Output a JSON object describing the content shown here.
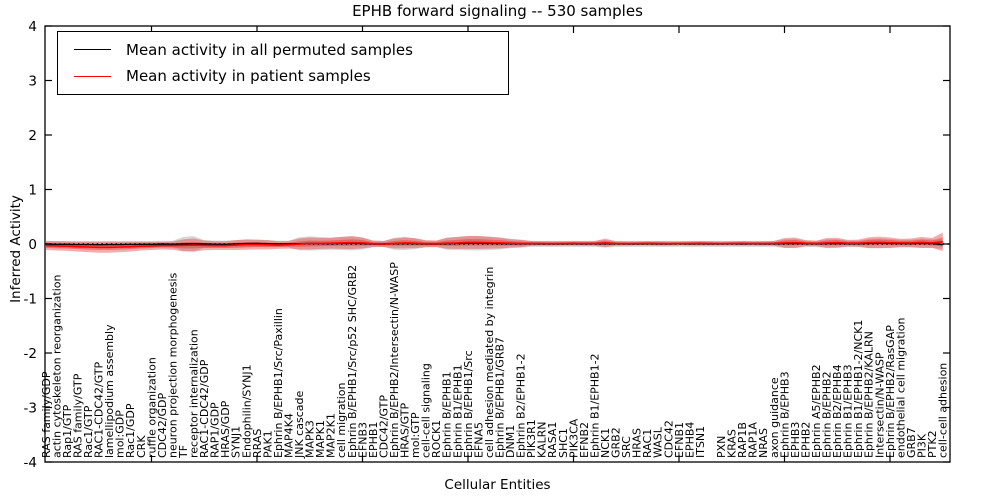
{
  "chart_data": {
    "type": "line",
    "title": "EPHB forward signaling -- 530 samples",
    "xlabel": "Cellular Entities",
    "ylabel": "Inferred Activity",
    "ylim": [
      -4,
      4
    ],
    "yticks": [
      -4,
      -3,
      -2,
      -1,
      0,
      1,
      2,
      3,
      4
    ],
    "xtick_interval": 10,
    "grid": false,
    "zero_line_style": "dotted",
    "legend_position": "upper left",
    "entities": [
      "RAS family/GDP",
      "actin cytoskeleton reorganization",
      "Rap1/GTP",
      "RAS family/GTP",
      "Rac1/GTP",
      "RAC1-CDC42/GTP",
      "lamellipodium assembly",
      "mol:GDP",
      "Rac1/GDP",
      "CRK",
      "ruffle organization",
      "CDC42/GDP",
      "neuron projection morphogenesis",
      "TF",
      "receptor internalization",
      "RAC1-CDC42/GDP",
      "RAP1/GDP",
      "HRAS/GDP",
      "SYNJ1",
      "Endophilin/SYNJ1",
      "RRAS",
      "PAK1",
      "Ephrin B/EPHB1/Src/Paxillin",
      "MAP4K4",
      "JNK cascade",
      "MAPK3",
      "MAPK1",
      "MAP2K1",
      "cell migration",
      "Ephrin B/EPHB1/Src/p52 SHC/GRB2",
      "EFNB3",
      "EPHB1",
      "CDC42/GTP",
      "Ephrin B/EPHB2/Intersectin/N-WASP",
      "HRAS/GTP",
      "mol:GTP",
      "cell-cell signaling",
      "ROCK1",
      "Ephrin B/EPHB1",
      "Ephrin B1/EPHB1",
      "Ephrin B/EPHB1/Src",
      "EFNA5",
      "cell adhesion mediated by integrin",
      "Ephrin B/EPHB1/GRB7",
      "DNM1",
      "Ephrin B2/EPHB1-2",
      "PIK3R1",
      "KALRN",
      "RASA1",
      "SHC1",
      "PIK3CA",
      "EFNB2",
      "Ephrin B1/EPHB1-2",
      "NCK1",
      "GRB2",
      "SRC",
      "HRAS",
      "RAC1",
      "WASL",
      "CDC42",
      "EFNB1",
      "EPHB4",
      "ITSN1",
      "",
      "PXN",
      "KRAS",
      "RAP1B",
      "RAP1A",
      "NRAS",
      "axon guidance",
      "Ephrin B/EPHB3",
      "EPHB3",
      "EPHB2",
      "Ephrin A5/EPHB2",
      "Ephrin B/EPHB2",
      "Ephrin B2/EPHB4",
      "Ephrin B1/EPHB3",
      "Ephrin B1/EPHB1-2/NCK1",
      "Ephrin B/EPHB2/KALRN",
      "Intersectin/N-WASP",
      "Ephrin B/EPHB2/RasGAP",
      "endothelial cell migration",
      "GRB7",
      "PI3K",
      "PTK2",
      "cell-cell adhesion"
    ],
    "series": [
      {
        "name": "Mean activity in all permuted samples",
        "color": "#000000",
        "band_color": "#a5a5a5",
        "values": [
          0,
          -0.005,
          -0.005,
          -0.01,
          -0.01,
          -0.012,
          -0.01,
          -0.01,
          -0.008,
          -0.005,
          -0.005,
          0,
          -0.003,
          0,
          0.005,
          0,
          -0.003,
          -0.005,
          0,
          0.008,
          0.01,
          0.005,
          0,
          0,
          0.005,
          0.01,
          0.008,
          0.005,
          0.01,
          0.012,
          0.008,
          0,
          0,
          0.005,
          0.01,
          0.005,
          0,
          0,
          0.005,
          0.01,
          0.012,
          0.012,
          0.01,
          0.008,
          0.005,
          0.003,
          0.003,
          0.002,
          0.002,
          0.002,
          0.003,
          0.002,
          0.003,
          0.005,
          0.003,
          0.002,
          0.002,
          0.003,
          0.002,
          0.002,
          0.003,
          0.002,
          0.003,
          0.002,
          0.002,
          0.003,
          0.002,
          0.003,
          0.002,
          0.003,
          0.008,
          0.01,
          0.005,
          0.003,
          0.008,
          0.01,
          0.005,
          0.005,
          0.01,
          0.012,
          0.01,
          0.008,
          0.008,
          0.012,
          0.008,
          -0.01
        ],
        "band_halfwidth": [
          0.06,
          0.06,
          0.06,
          0.065,
          0.065,
          0.065,
          0.065,
          0.065,
          0.065,
          0.06,
          0.06,
          0.06,
          0.06,
          0.13,
          0.14,
          0.07,
          0.065,
          0.065,
          0.07,
          0.075,
          0.07,
          0.065,
          0.06,
          0.06,
          0.12,
          0.13,
          0.12,
          0.11,
          0.12,
          0.13,
          0.11,
          0.06,
          0.055,
          0.11,
          0.12,
          0.1,
          0.06,
          0.06,
          0.11,
          0.12,
          0.13,
          0.13,
          0.12,
          0.11,
          0.08,
          0.07,
          0.055,
          0.055,
          0.055,
          0.055,
          0.055,
          0.055,
          0.055,
          0.07,
          0.055,
          0.055,
          0.055,
          0.055,
          0.055,
          0.055,
          0.055,
          0.055,
          0.055,
          0.055,
          0.055,
          0.055,
          0.055,
          0.055,
          0.055,
          0.055,
          0.08,
          0.085,
          0.06,
          0.06,
          0.08,
          0.08,
          0.06,
          0.06,
          0.085,
          0.09,
          0.085,
          0.07,
          0.07,
          0.085,
          0.08,
          0.08
        ]
      },
      {
        "name": "Mean activity in patient samples",
        "color": "#ff0000",
        "band_color": "#e84646",
        "values": [
          -0.03,
          -0.035,
          -0.04,
          -0.05,
          -0.055,
          -0.06,
          -0.06,
          -0.055,
          -0.05,
          -0.04,
          -0.035,
          -0.03,
          -0.03,
          -0.025,
          -0.02,
          -0.025,
          -0.03,
          -0.03,
          -0.02,
          -0.01,
          -0.01,
          -0.015,
          -0.02,
          -0.015,
          0,
          0.01,
          0.01,
          0.015,
          0.02,
          0.025,
          0.02,
          0.005,
          0,
          0.01,
          0.02,
          0.015,
          0.005,
          0.005,
          0.015,
          0.02,
          0.03,
          0.03,
          0.025,
          0.02,
          0.015,
          0.01,
          0.01,
          0.01,
          0.008,
          0.01,
          0.012,
          0.01,
          0.01,
          0.02,
          0.01,
          0.008,
          0.01,
          0.012,
          0.01,
          0.008,
          0.01,
          0.01,
          0.012,
          0.01,
          0.008,
          0.01,
          0.012,
          0.01,
          0.01,
          0.012,
          0.02,
          0.025,
          0.015,
          0.01,
          0.02,
          0.025,
          0.015,
          0.015,
          0.025,
          0.03,
          0.025,
          0.02,
          0.02,
          0.03,
          0.02,
          0.04
        ],
        "band_halfwidth": [
          0.08,
          0.085,
          0.085,
          0.09,
          0.095,
          0.1,
          0.1,
          0.095,
          0.09,
          0.08,
          0.075,
          0.07,
          0.075,
          0.11,
          0.12,
          0.09,
          0.08,
          0.08,
          0.09,
          0.095,
          0.09,
          0.085,
          0.07,
          0.07,
          0.1,
          0.11,
          0.1,
          0.1,
          0.11,
          0.12,
          0.1,
          0.06,
          0.055,
          0.09,
          0.1,
          0.09,
          0.065,
          0.06,
          0.1,
          0.11,
          0.12,
          0.12,
          0.11,
          0.1,
          0.08,
          0.07,
          0.045,
          0.04,
          0.04,
          0.038,
          0.04,
          0.04,
          0.042,
          0.08,
          0.04,
          0.038,
          0.036,
          0.038,
          0.04,
          0.038,
          0.036,
          0.038,
          0.04,
          0.038,
          0.036,
          0.038,
          0.04,
          0.038,
          0.04,
          0.042,
          0.09,
          0.095,
          0.055,
          0.05,
          0.09,
          0.09,
          0.06,
          0.065,
          0.1,
          0.105,
          0.095,
          0.075,
          0.08,
          0.1,
          0.09,
          0.17
        ]
      }
    ]
  }
}
